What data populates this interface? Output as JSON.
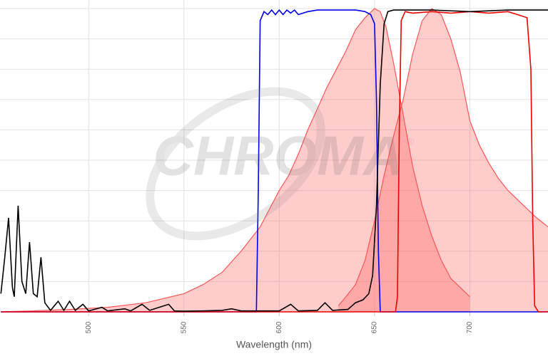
{
  "chart_data": {
    "type": "line",
    "x_label": "Wavelength (nm)",
    "watermark": "CHROMA",
    "watermark_mark": "®",
    "xlim": [
      453.5,
      741
    ],
    "xticks": [
      500,
      550,
      600,
      650,
      700
    ],
    "ylim": [
      0,
      100
    ],
    "ygrid": [
      0,
      10,
      20,
      30,
      40,
      50,
      60,
      70,
      80,
      90,
      100
    ],
    "grid": true,
    "series": [
      {
        "color": "#ff5555",
        "fill": true,
        "x": [
          454,
          470,
          490,
          510,
          530,
          550,
          560,
          570,
          580,
          590,
          600,
          605,
          610,
          615,
          620,
          625,
          630,
          635,
          640,
          645,
          650,
          653,
          656,
          660,
          665,
          670,
          675,
          680,
          685,
          690,
          695,
          700
        ],
        "values": [
          0,
          0.3,
          0.8,
          1.5,
          3,
          6,
          9,
          13,
          20,
          28,
          40,
          45,
          52,
          60,
          67,
          74,
          80,
          86,
          93,
          97,
          100,
          99,
          94,
          82,
          65,
          48,
          35,
          25,
          17,
          11,
          8,
          5
        ]
      },
      {
        "color": "#ff5555",
        "fill": true,
        "x": [
          631,
          635,
          640,
          645,
          650,
          655,
          660,
          665,
          670,
          675,
          680,
          685,
          690,
          695,
          700,
          705,
          710,
          715,
          720,
          725,
          730,
          735,
          741
        ],
        "values": [
          2,
          5,
          9,
          17,
          30,
          45,
          58,
          70,
          85,
          96,
          100,
          98,
          90,
          79,
          63,
          55,
          49,
          44,
          40,
          37,
          34,
          31,
          28
        ]
      },
      {
        "color": "#0000ee",
        "fill": false,
        "x": [
          454,
          586,
          588,
          589,
          590,
          592,
          594,
          596,
          598,
          600,
          602,
          604,
          606,
          608,
          610,
          615,
          620,
          625,
          630,
          635,
          640,
          645,
          648,
          650,
          651,
          652,
          653,
          741
        ],
        "values": [
          0,
          0,
          0,
          40,
          96,
          99,
          98,
          99.5,
          98,
          99.5,
          98,
          99.5,
          98.5,
          99.5,
          98,
          99,
          99.5,
          99.5,
          99.5,
          99.5,
          99.5,
          99,
          98,
          95,
          70,
          20,
          0,
          0
        ]
      },
      {
        "color": "#ee0000",
        "fill": false,
        "x": [
          454,
          661,
          662,
          663,
          664,
          666,
          670,
          680,
          690,
          700,
          710,
          720,
          725,
          730,
          732,
          733,
          734,
          736,
          741
        ],
        "values": [
          0,
          0,
          5,
          60,
          96,
          99,
          98.5,
          99,
          98.5,
          99,
          98.5,
          99,
          98,
          97,
          80,
          30,
          2,
          0,
          0
        ]
      },
      {
        "color": "#000000",
        "fill": false,
        "x": [
          454,
          456,
          458,
          460,
          461,
          463,
          465,
          467,
          469,
          471,
          473,
          475,
          477,
          480,
          484,
          487,
          490,
          493,
          497,
          500,
          507,
          510,
          519,
          522,
          528,
          532,
          542,
          545,
          550,
          560,
          570,
          575,
          580,
          590,
          600,
          606,
          610,
          620,
          624,
          628,
          636,
          640,
          644,
          647,
          649,
          651,
          653,
          655,
          657,
          660,
          680,
          700,
          720,
          741
        ],
        "values": [
          6,
          18,
          31,
          8,
          5,
          35,
          10,
          6,
          23,
          6,
          5,
          18,
          3,
          0.5,
          3.5,
          0.5,
          3.5,
          0.5,
          2.5,
          0.3,
          1.5,
          0.3,
          1,
          0.3,
          2.5,
          0.5,
          2.5,
          0.3,
          0.2,
          0.3,
          0.5,
          1,
          0.3,
          0.3,
          0.3,
          2.5,
          0.3,
          0.5,
          3,
          0.5,
          0.8,
          3,
          4,
          6,
          12,
          35,
          75,
          95,
          99,
          99.5,
          99.5,
          99,
          99.5,
          99.5
        ]
      }
    ]
  }
}
